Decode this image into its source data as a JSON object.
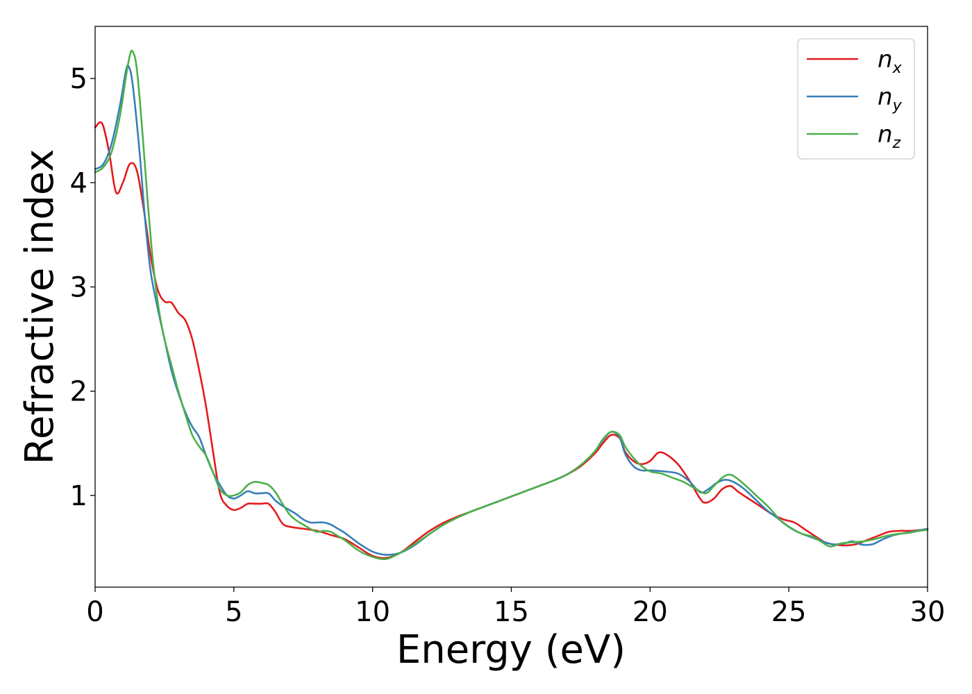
{
  "chart_data": {
    "type": "line",
    "xlabel": "Energy (eV)",
    "ylabel": "Refractive index",
    "xlim": [
      0,
      30
    ],
    "ylim": [
      0.12,
      5.5
    ],
    "xticks": [
      0,
      5,
      10,
      15,
      20,
      25,
      30
    ],
    "yticks": [
      1,
      2,
      3,
      4,
      5
    ],
    "grid": false,
    "legend_position": "top-right",
    "series": [
      {
        "name": "n_x",
        "label_base": "n",
        "label_sub": "x",
        "color": "#e41a1c",
        "points": [
          [
            0,
            4.53
          ],
          [
            0.25,
            4.57
          ],
          [
            0.5,
            4.3
          ],
          [
            0.75,
            3.91
          ],
          [
            1.0,
            4.0
          ],
          [
            1.25,
            4.18
          ],
          [
            1.5,
            4.12
          ],
          [
            1.75,
            3.75
          ],
          [
            2.0,
            3.3
          ],
          [
            2.25,
            2.98
          ],
          [
            2.5,
            2.86
          ],
          [
            2.75,
            2.85
          ],
          [
            3.0,
            2.75
          ],
          [
            3.25,
            2.68
          ],
          [
            3.5,
            2.5
          ],
          [
            3.75,
            2.2
          ],
          [
            4.0,
            1.85
          ],
          [
            4.25,
            1.42
          ],
          [
            4.5,
            1.02
          ],
          [
            4.75,
            0.9
          ],
          [
            5.0,
            0.86
          ],
          [
            5.25,
            0.88
          ],
          [
            5.5,
            0.92
          ],
          [
            5.75,
            0.92
          ],
          [
            6.0,
            0.92
          ],
          [
            6.25,
            0.92
          ],
          [
            6.5,
            0.84
          ],
          [
            6.75,
            0.73
          ],
          [
            7.0,
            0.7
          ],
          [
            7.5,
            0.68
          ],
          [
            8.0,
            0.66
          ],
          [
            8.5,
            0.62
          ],
          [
            9.0,
            0.58
          ],
          [
            9.5,
            0.5
          ],
          [
            10.0,
            0.42
          ],
          [
            10.5,
            0.4
          ],
          [
            11.0,
            0.45
          ],
          [
            11.5,
            0.55
          ],
          [
            12.0,
            0.65
          ],
          [
            12.5,
            0.73
          ],
          [
            13.0,
            0.79
          ],
          [
            13.5,
            0.84
          ],
          [
            14.0,
            0.89
          ],
          [
            14.5,
            0.94
          ],
          [
            15.0,
            0.99
          ],
          [
            15.5,
            1.04
          ],
          [
            16.0,
            1.09
          ],
          [
            16.5,
            1.14
          ],
          [
            17.0,
            1.2
          ],
          [
            17.5,
            1.28
          ],
          [
            18.0,
            1.4
          ],
          [
            18.3,
            1.5
          ],
          [
            18.6,
            1.58
          ],
          [
            18.9,
            1.55
          ],
          [
            19.1,
            1.42
          ],
          [
            19.4,
            1.33
          ],
          [
            19.7,
            1.3
          ],
          [
            20.0,
            1.33
          ],
          [
            20.3,
            1.41
          ],
          [
            20.6,
            1.39
          ],
          [
            21.0,
            1.3
          ],
          [
            21.4,
            1.15
          ],
          [
            21.8,
            0.97
          ],
          [
            22.0,
            0.93
          ],
          [
            22.3,
            0.97
          ],
          [
            22.6,
            1.06
          ],
          [
            22.9,
            1.09
          ],
          [
            23.2,
            1.03
          ],
          [
            23.6,
            0.96
          ],
          [
            24.0,
            0.89
          ],
          [
            24.4,
            0.82
          ],
          [
            24.8,
            0.77
          ],
          [
            25.2,
            0.74
          ],
          [
            25.6,
            0.67
          ],
          [
            26.0,
            0.6
          ],
          [
            26.3,
            0.55
          ],
          [
            26.6,
            0.53
          ],
          [
            27.0,
            0.52
          ],
          [
            27.4,
            0.53
          ],
          [
            27.8,
            0.57
          ],
          [
            28.2,
            0.61
          ],
          [
            28.6,
            0.65
          ],
          [
            29.0,
            0.66
          ],
          [
            29.4,
            0.66
          ],
          [
            29.8,
            0.67
          ],
          [
            30.0,
            0.67
          ]
        ]
      },
      {
        "name": "n_y",
        "label_base": "n",
        "label_sub": "y",
        "color": "#377eb8",
        "points": [
          [
            0,
            4.13
          ],
          [
            0.3,
            4.18
          ],
          [
            0.6,
            4.38
          ],
          [
            0.9,
            4.75
          ],
          [
            1.1,
            5.06
          ],
          [
            1.2,
            5.12
          ],
          [
            1.35,
            4.95
          ],
          [
            1.6,
            4.3
          ],
          [
            1.8,
            3.65
          ],
          [
            2.0,
            3.15
          ],
          [
            2.25,
            2.8
          ],
          [
            2.5,
            2.5
          ],
          [
            2.75,
            2.2
          ],
          [
            3.0,
            1.98
          ],
          [
            3.25,
            1.8
          ],
          [
            3.5,
            1.66
          ],
          [
            3.75,
            1.56
          ],
          [
            4.0,
            1.38
          ],
          [
            4.25,
            1.22
          ],
          [
            4.5,
            1.1
          ],
          [
            4.75,
            1.0
          ],
          [
            5.0,
            0.97
          ],
          [
            5.25,
            1.0
          ],
          [
            5.5,
            1.04
          ],
          [
            5.75,
            1.02
          ],
          [
            6.0,
            1.02
          ],
          [
            6.25,
            1.02
          ],
          [
            6.5,
            0.95
          ],
          [
            6.75,
            0.9
          ],
          [
            7.0,
            0.86
          ],
          [
            7.25,
            0.82
          ],
          [
            7.5,
            0.77
          ],
          [
            7.75,
            0.74
          ],
          [
            8.0,
            0.74
          ],
          [
            8.25,
            0.74
          ],
          [
            8.5,
            0.72
          ],
          [
            8.75,
            0.68
          ],
          [
            9.0,
            0.64
          ],
          [
            9.5,
            0.54
          ],
          [
            10.0,
            0.46
          ],
          [
            10.5,
            0.43
          ],
          [
            11.0,
            0.45
          ],
          [
            11.5,
            0.52
          ],
          [
            12.0,
            0.62
          ],
          [
            12.5,
            0.71
          ],
          [
            13.0,
            0.78
          ],
          [
            13.5,
            0.84
          ],
          [
            14.0,
            0.89
          ],
          [
            14.5,
            0.94
          ],
          [
            15.0,
            0.99
          ],
          [
            15.5,
            1.04
          ],
          [
            16.0,
            1.09
          ],
          [
            16.5,
            1.14
          ],
          [
            17.0,
            1.2
          ],
          [
            17.5,
            1.29
          ],
          [
            18.0,
            1.42
          ],
          [
            18.3,
            1.53
          ],
          [
            18.6,
            1.61
          ],
          [
            18.9,
            1.56
          ],
          [
            19.1,
            1.4
          ],
          [
            19.4,
            1.28
          ],
          [
            19.7,
            1.24
          ],
          [
            20.0,
            1.24
          ],
          [
            20.5,
            1.23
          ],
          [
            21.0,
            1.21
          ],
          [
            21.4,
            1.14
          ],
          [
            21.8,
            1.03
          ],
          [
            22.1,
            1.06
          ],
          [
            22.4,
            1.12
          ],
          [
            22.7,
            1.15
          ],
          [
            23.0,
            1.13
          ],
          [
            23.4,
            1.06
          ],
          [
            23.8,
            0.96
          ],
          [
            24.2,
            0.86
          ],
          [
            24.6,
            0.78
          ],
          [
            25.0,
            0.7
          ],
          [
            25.4,
            0.64
          ],
          [
            25.8,
            0.6
          ],
          [
            26.2,
            0.56
          ],
          [
            26.6,
            0.53
          ],
          [
            27.0,
            0.54
          ],
          [
            27.3,
            0.56
          ],
          [
            27.6,
            0.53
          ],
          [
            28.0,
            0.53
          ],
          [
            28.4,
            0.58
          ],
          [
            28.8,
            0.62
          ],
          [
            29.2,
            0.64
          ],
          [
            29.6,
            0.66
          ],
          [
            30.0,
            0.68
          ]
        ]
      },
      {
        "name": "n_z",
        "label_base": "n",
        "label_sub": "z",
        "color": "#4daf4a",
        "points": [
          [
            0,
            4.1
          ],
          [
            0.3,
            4.15
          ],
          [
            0.6,
            4.3
          ],
          [
            0.9,
            4.65
          ],
          [
            1.1,
            5.0
          ],
          [
            1.25,
            5.22
          ],
          [
            1.35,
            5.26
          ],
          [
            1.5,
            5.1
          ],
          [
            1.7,
            4.5
          ],
          [
            1.9,
            3.8
          ],
          [
            2.1,
            3.2
          ],
          [
            2.3,
            2.78
          ],
          [
            2.5,
            2.5
          ],
          [
            2.75,
            2.25
          ],
          [
            3.0,
            2.0
          ],
          [
            3.25,
            1.78
          ],
          [
            3.5,
            1.58
          ],
          [
            3.75,
            1.47
          ],
          [
            4.0,
            1.38
          ],
          [
            4.25,
            1.22
          ],
          [
            4.5,
            1.06
          ],
          [
            4.75,
            1.0
          ],
          [
            5.0,
            1.0
          ],
          [
            5.25,
            1.03
          ],
          [
            5.5,
            1.1
          ],
          [
            5.75,
            1.13
          ],
          [
            6.0,
            1.12
          ],
          [
            6.25,
            1.1
          ],
          [
            6.5,
            1.03
          ],
          [
            6.75,
            0.92
          ],
          [
            7.0,
            0.82
          ],
          [
            7.25,
            0.76
          ],
          [
            7.5,
            0.72
          ],
          [
            7.75,
            0.68
          ],
          [
            8.0,
            0.65
          ],
          [
            8.25,
            0.66
          ],
          [
            8.5,
            0.65
          ],
          [
            8.75,
            0.61
          ],
          [
            9.0,
            0.57
          ],
          [
            9.5,
            0.47
          ],
          [
            10.0,
            0.41
          ],
          [
            10.5,
            0.39
          ],
          [
            11.0,
            0.45
          ],
          [
            11.5,
            0.53
          ],
          [
            12.0,
            0.62
          ],
          [
            12.5,
            0.71
          ],
          [
            13.0,
            0.78
          ],
          [
            13.5,
            0.84
          ],
          [
            14.0,
            0.89
          ],
          [
            14.5,
            0.94
          ],
          [
            15.0,
            0.99
          ],
          [
            15.5,
            1.04
          ],
          [
            16.0,
            1.09
          ],
          [
            16.5,
            1.14
          ],
          [
            17.0,
            1.2
          ],
          [
            17.5,
            1.29
          ],
          [
            18.0,
            1.42
          ],
          [
            18.3,
            1.54
          ],
          [
            18.6,
            1.61
          ],
          [
            18.9,
            1.58
          ],
          [
            19.1,
            1.47
          ],
          [
            19.4,
            1.36
          ],
          [
            19.7,
            1.28
          ],
          [
            20.0,
            1.23
          ],
          [
            20.4,
            1.21
          ],
          [
            20.8,
            1.17
          ],
          [
            21.2,
            1.13
          ],
          [
            21.6,
            1.07
          ],
          [
            22.0,
            1.02
          ],
          [
            22.3,
            1.09
          ],
          [
            22.6,
            1.17
          ],
          [
            22.85,
            1.2
          ],
          [
            23.1,
            1.17
          ],
          [
            23.5,
            1.08
          ],
          [
            23.9,
            0.98
          ],
          [
            24.3,
            0.88
          ],
          [
            24.7,
            0.76
          ],
          [
            25.1,
            0.68
          ],
          [
            25.5,
            0.63
          ],
          [
            25.9,
            0.6
          ],
          [
            26.2,
            0.55
          ],
          [
            26.5,
            0.51
          ],
          [
            26.9,
            0.54
          ],
          [
            27.3,
            0.55
          ],
          [
            27.7,
            0.56
          ],
          [
            28.1,
            0.58
          ],
          [
            28.5,
            0.61
          ],
          [
            28.9,
            0.63
          ],
          [
            29.3,
            0.64
          ],
          [
            29.7,
            0.66
          ],
          [
            30.0,
            0.67
          ]
        ]
      }
    ]
  }
}
